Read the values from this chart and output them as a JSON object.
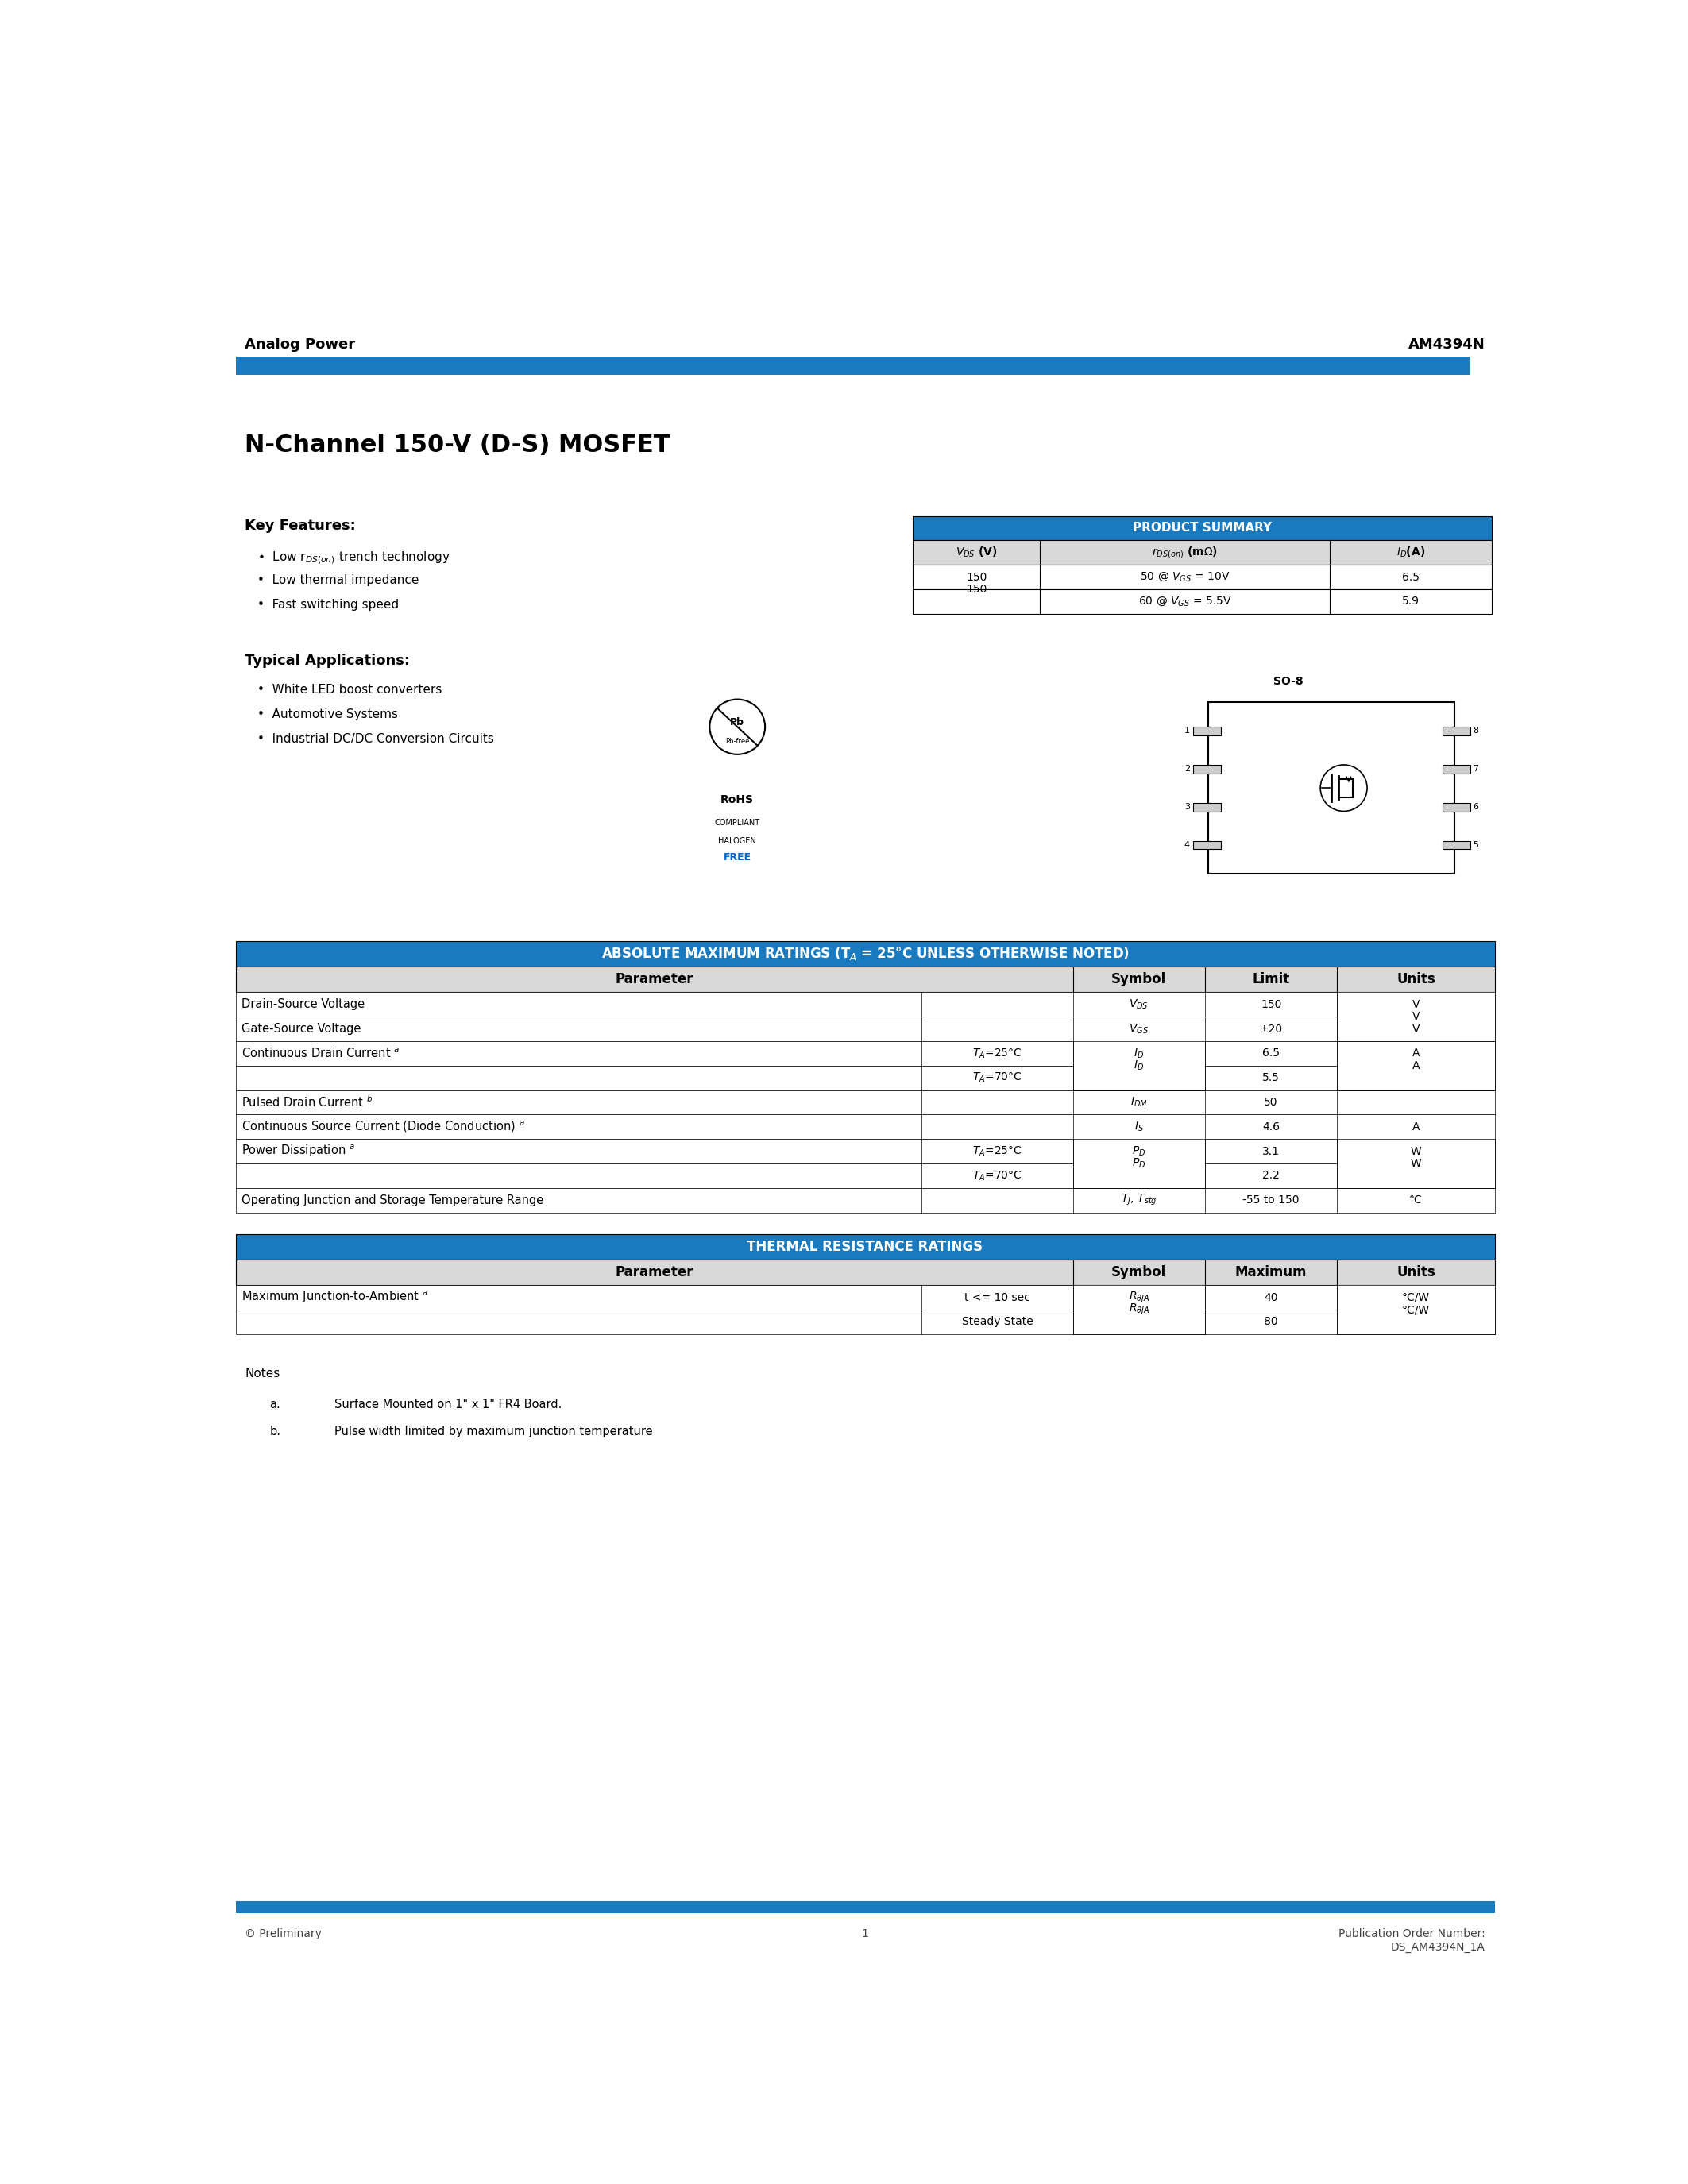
{
  "page_width": 21.25,
  "page_height": 27.5,
  "bg_color": "#ffffff",
  "header_left": "Analog Power",
  "header_right": "AM4394N",
  "blue_color": "#1a7abf",
  "title": "N-Channel 150-V (D-S) MOSFET",
  "key_features_title": "Key Features:",
  "key_features": [
    "Low r$_{DS(on)}$ trench technology",
    "Low thermal impedance",
    "Fast switching speed"
  ],
  "typical_apps_title": "Typical Applications:",
  "typical_apps": [
    "White LED boost converters",
    "Automotive Systems",
    "Industrial DC/DC Conversion Circuits"
  ],
  "ps_title": "PRODUCT SUMMARY",
  "ps_headers": [
    "$V_{DS}$ (V)",
    "$r_{DS(on)}$ (m$\\Omega$)",
    "$I_D$(A)"
  ],
  "ps_row1": [
    "150",
    "50 @ $V_{GS}$ = 10V",
    "6.5"
  ],
  "ps_row2": [
    "",
    "60 @ $V_{GS}$ = 5.5V",
    "5.9"
  ],
  "rohs_text": [
    "RoHS",
    "COMPLIANT",
    "HALOGEN",
    "FREE"
  ],
  "so8_label": "SO-8",
  "amt_title": "ABSOLUTE MAXIMUM RATINGS (T$_A$ = 25°C UNLESS OTHERWISE NOTED)",
  "amt_col_headers": [
    "Parameter",
    "Symbol",
    "Limit",
    "Units"
  ],
  "amt_rows": [
    [
      "Drain-Source Voltage",
      "",
      "$V_{DS}$",
      "150",
      "V"
    ],
    [
      "Gate-Source Voltage",
      "",
      "$V_{GS}$",
      "±20",
      "V"
    ],
    [
      "Continuous Drain Current $^a$",
      "$T_A$=25°C",
      "$I_D$",
      "6.5",
      "A"
    ],
    [
      "",
      "$T_A$=70°C",
      "",
      "5.5",
      ""
    ],
    [
      "Pulsed Drain Current $^b$",
      "",
      "$I_{DM}$",
      "50",
      ""
    ],
    [
      "Continuous Source Current (Diode Conduction) $^a$",
      "",
      "$I_S$",
      "4.6",
      "A"
    ],
    [
      "Power Dissipation $^a$",
      "$T_A$=25°C",
      "$P_D$",
      "3.1",
      "W"
    ],
    [
      "",
      "$T_A$=70°C",
      "",
      "2.2",
      ""
    ],
    [
      "Operating Junction and Storage Temperature Range",
      "",
      "$T_J$, $T_{stg}$",
      "-55 to 150",
      "°C"
    ]
  ],
  "thermal_title": "THERMAL RESISTANCE RATINGS",
  "thermal_col_headers": [
    "Parameter",
    "Symbol",
    "Maximum",
    "Units"
  ],
  "thermal_rows": [
    [
      "Maximum Junction-to-Ambient $^a$",
      "t <= 10 sec",
      "$R_{\\theta JA}$",
      "40",
      "°C/W"
    ],
    [
      "",
      "Steady State",
      "",
      "80",
      ""
    ]
  ],
  "notes_title": "Notes",
  "note_a": "Surface Mounted on 1\" x 1\" FR4 Board.",
  "note_b": "Pulse width limited by maximum junction temperature",
  "footer_left": "© Preliminary",
  "footer_center": "1",
  "footer_right": "Publication Order Number:\nDS_AM4394N_1A"
}
